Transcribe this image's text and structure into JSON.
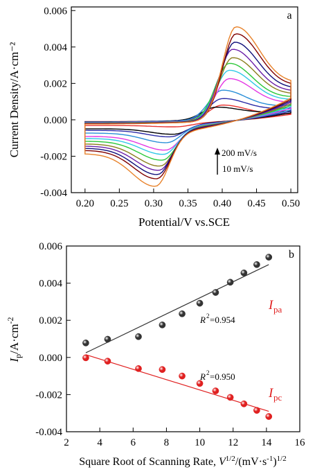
{
  "chart_data": [
    {
      "panel": "a",
      "type": "line",
      "xlabel": "Potential/V vs.SCE",
      "ylabel": "Current Density/A·cm⁻²",
      "xlim": [
        0.18,
        0.51
      ],
      "ylim": [
        -0.004,
        0.0062
      ],
      "xticks": [
        "0.20",
        "0.25",
        "0.30",
        "0.35",
        "0.40",
        "0.45",
        "0.50"
      ],
      "yticks": [
        "-0.004",
        "-0.002",
        "0.000",
        "0.002",
        "0.004",
        "0.006"
      ],
      "annotation_high": "200 mV/s",
      "annotation_low": "10 mV/s",
      "grid": false,
      "curve_colors": [
        "#e8312d",
        "#000000",
        "#2a2aa6",
        "#2a8fd8",
        "#e437e4",
        "#2fc8e6",
        "#2cc83a",
        "#8a7f1d",
        "#6b1fa8",
        "#0f0f7a",
        "#800000",
        "#e8822a"
      ],
      "peak_anodic": [
        0.0009,
        0.0007,
        0.0012,
        0.0017,
        0.0024,
        0.0029,
        0.0033,
        0.0036,
        0.0041,
        0.0045,
        0.005,
        0.0054
      ],
      "peak_cathodic": [
        -0.0002,
        -0.0006,
        -0.0007,
        -0.001,
        -0.0014,
        -0.0016,
        -0.0019,
        -0.0022,
        -0.0024,
        -0.0026,
        -0.0028,
        -0.0032
      ],
      "peak_anodic_x": [
        0.4,
        0.39,
        0.4,
        0.4,
        0.41,
        0.41,
        0.41,
        0.415,
        0.415,
        0.418,
        0.42,
        0.42
      ],
      "peak_cathodic_x": [
        0.335,
        0.33,
        0.325,
        0.32,
        0.318,
        0.315,
        0.313,
        0.31,
        0.308,
        0.306,
        0.305,
        0.303
      ]
    },
    {
      "panel": "b",
      "type": "scatter",
      "xlabel": "Square Root of Scanning Rate, V¹ᐟ²/(mV·s⁻¹)¹ᐟ²",
      "ylabel": "Ip/A·cm⁻²",
      "xlim": [
        2,
        16
      ],
      "ylim": [
        -0.004,
        0.006
      ],
      "xticks": [
        "2",
        "4",
        "6",
        "8",
        "10",
        "12",
        "14",
        "16"
      ],
      "yticks": [
        "-0.004",
        "-0.002",
        "0.000",
        "0.002",
        "0.004",
        "0.006"
      ],
      "grid": false,
      "series": [
        {
          "name": "Ipa",
          "color": "#333333",
          "x": [
            3.16,
            4.47,
            6.32,
            7.75,
            8.94,
            10.0,
            10.95,
            11.83,
            12.65,
            13.42,
            14.14
          ],
          "y": [
            0.00078,
            0.00098,
            0.00112,
            0.00175,
            0.00235,
            0.00292,
            0.0035,
            0.00405,
            0.00455,
            0.005,
            0.0054
          ],
          "fit": {
            "x": [
              3.16,
              14.14
            ],
            "y": [
              0.00025,
              0.005
            ]
          },
          "r2": "=0.954"
        },
        {
          "name": "Ipc",
          "color": "#e02020",
          "x": [
            3.16,
            4.47,
            6.32,
            7.75,
            8.94,
            10.0,
            10.95,
            11.83,
            12.65,
            13.42,
            14.14
          ],
          "y": [
            -2e-05,
            -0.0002,
            -0.0006,
            -0.00065,
            -0.001,
            -0.0014,
            -0.0018,
            -0.00215,
            -0.0025,
            -0.00285,
            -0.00318
          ],
          "fit": {
            "x": [
              3.16,
              14.14
            ],
            "y": [
              0.00015,
              -0.0029
            ]
          },
          "r2": "=0.950"
        }
      ]
    }
  ]
}
